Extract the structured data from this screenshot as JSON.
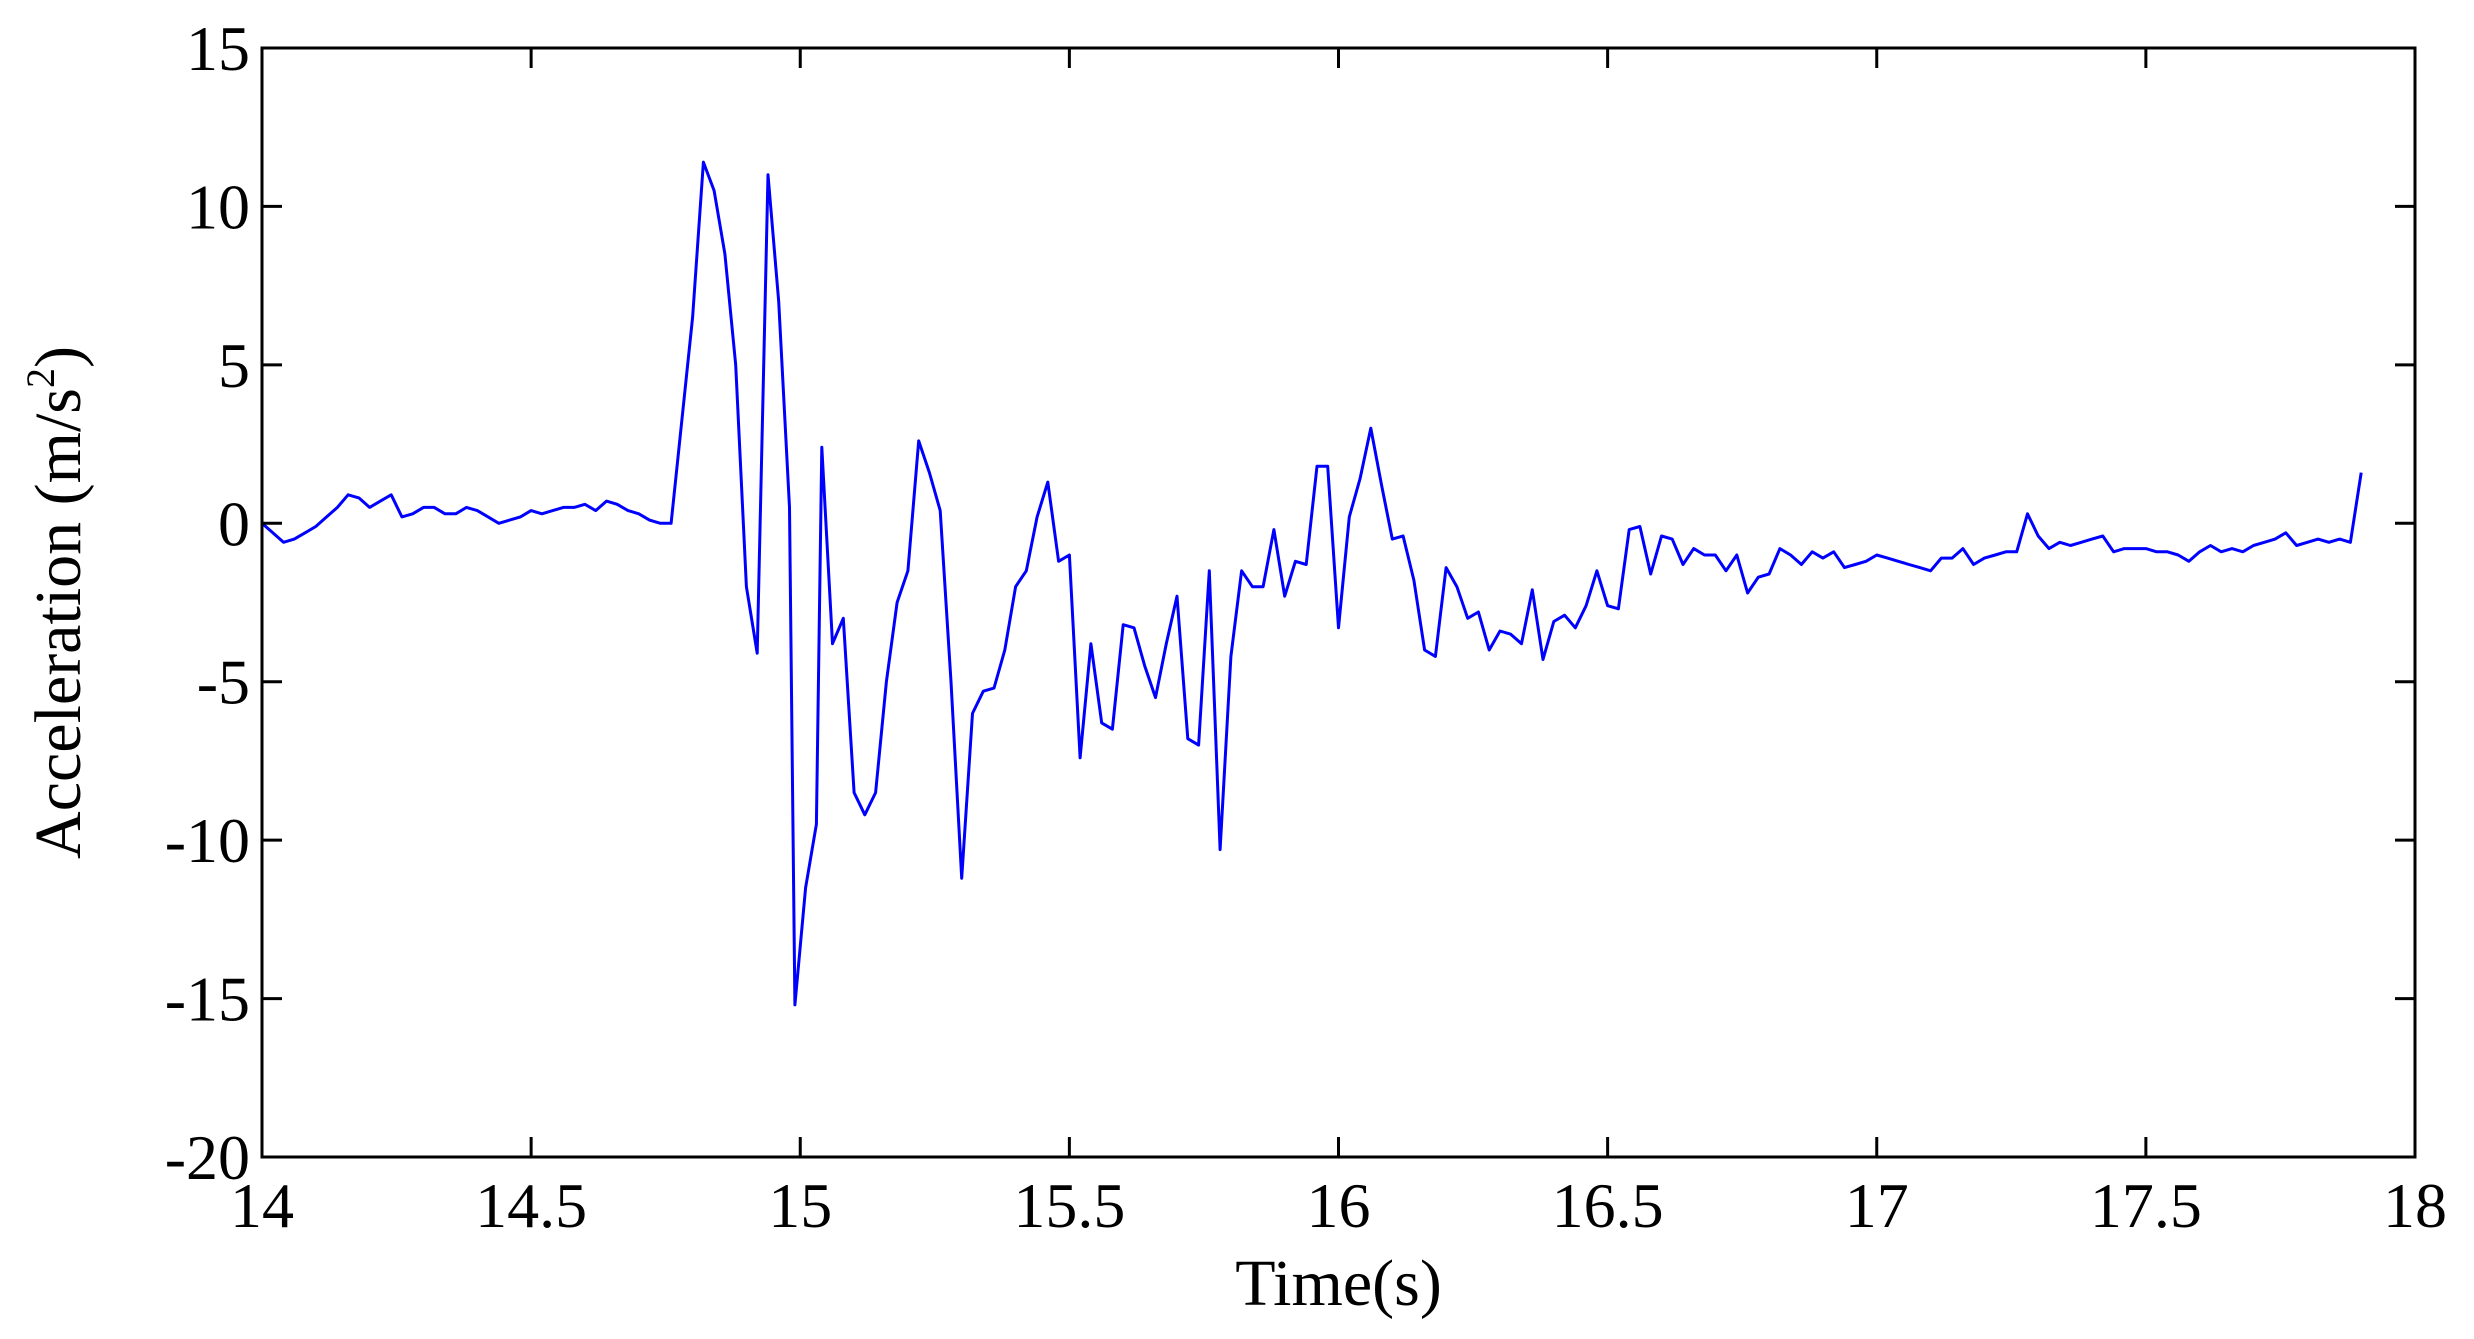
{
  "chart_data": {
    "type": "line",
    "title": "",
    "xlabel": "Time(s)",
    "ylabel_main": "Acceleration  (m/s",
    "ylabel_sup": "2",
    "ylabel_close": ")",
    "xlim": [
      14,
      18
    ],
    "ylim": [
      -20,
      15
    ],
    "xticks": [
      14,
      14.5,
      15,
      15.5,
      16,
      16.5,
      17,
      17.5,
      18
    ],
    "xtick_labels": [
      "14",
      "14.5",
      "15",
      "15.5",
      "16",
      "16.5",
      "17",
      "17.5",
      "18"
    ],
    "yticks": [
      15,
      10,
      5,
      0,
      -5,
      -10,
      -15,
      -20
    ],
    "ytick_labels": [
      "15",
      "10",
      "5",
      "0",
      "-5",
      "-10",
      "-15",
      "-20"
    ],
    "grid": false,
    "series": [
      {
        "color": "#0000ff",
        "points": [
          [
            14.0,
            0.0
          ],
          [
            14.02,
            -0.3
          ],
          [
            14.04,
            -0.6
          ],
          [
            14.06,
            -0.5
          ],
          [
            14.08,
            -0.3
          ],
          [
            14.1,
            -0.1
          ],
          [
            14.12,
            0.2
          ],
          [
            14.14,
            0.5
          ],
          [
            14.16,
            0.9
          ],
          [
            14.18,
            0.8
          ],
          [
            14.2,
            0.5
          ],
          [
            14.22,
            0.7
          ],
          [
            14.24,
            0.9
          ],
          [
            14.26,
            0.2
          ],
          [
            14.28,
            0.3
          ],
          [
            14.3,
            0.5
          ],
          [
            14.32,
            0.5
          ],
          [
            14.34,
            0.3
          ],
          [
            14.36,
            0.3
          ],
          [
            14.38,
            0.5
          ],
          [
            14.4,
            0.4
          ],
          [
            14.42,
            0.2
          ],
          [
            14.44,
            0.0
          ],
          [
            14.46,
            0.1
          ],
          [
            14.48,
            0.2
          ],
          [
            14.5,
            0.4
          ],
          [
            14.52,
            0.3
          ],
          [
            14.54,
            0.4
          ],
          [
            14.56,
            0.5
          ],
          [
            14.58,
            0.5
          ],
          [
            14.6,
            0.6
          ],
          [
            14.62,
            0.4
          ],
          [
            14.64,
            0.7
          ],
          [
            14.66,
            0.6
          ],
          [
            14.68,
            0.4
          ],
          [
            14.7,
            0.3
          ],
          [
            14.72,
            0.1
          ],
          [
            14.74,
            0.0
          ],
          [
            14.76,
            0.0
          ],
          [
            14.8,
            6.5
          ],
          [
            14.82,
            11.4
          ],
          [
            14.84,
            10.5
          ],
          [
            14.86,
            8.5
          ],
          [
            14.88,
            5.0
          ],
          [
            14.9,
            -2.0
          ],
          [
            14.92,
            -4.1
          ],
          [
            14.94,
            11.0
          ],
          [
            14.96,
            7.0
          ],
          [
            14.98,
            0.5
          ],
          [
            14.99,
            -15.2
          ],
          [
            15.01,
            -11.5
          ],
          [
            15.03,
            -9.5
          ],
          [
            15.04,
            2.4
          ],
          [
            15.06,
            -3.8
          ],
          [
            15.08,
            -3.0
          ],
          [
            15.1,
            -8.5
          ],
          [
            15.12,
            -9.2
          ],
          [
            15.14,
            -8.5
          ],
          [
            15.16,
            -5.0
          ],
          [
            15.18,
            -2.5
          ],
          [
            15.2,
            -1.5
          ],
          [
            15.22,
            2.6
          ],
          [
            15.24,
            1.6
          ],
          [
            15.26,
            0.4
          ],
          [
            15.28,
            -5.0
          ],
          [
            15.3,
            -11.2
          ],
          [
            15.32,
            -6.0
          ],
          [
            15.34,
            -5.3
          ],
          [
            15.36,
            -5.2
          ],
          [
            15.38,
            -4.0
          ],
          [
            15.4,
            -2.0
          ],
          [
            15.42,
            -1.5
          ],
          [
            15.44,
            0.2
          ],
          [
            15.46,
            1.3
          ],
          [
            15.48,
            -1.2
          ],
          [
            15.5,
            -1.0
          ],
          [
            15.52,
            -7.4
          ],
          [
            15.54,
            -3.8
          ],
          [
            15.56,
            -6.3
          ],
          [
            15.58,
            -6.5
          ],
          [
            15.6,
            -3.2
          ],
          [
            15.62,
            -3.3
          ],
          [
            15.64,
            -4.5
          ],
          [
            15.66,
            -5.5
          ],
          [
            15.68,
            -3.8
          ],
          [
            15.7,
            -2.3
          ],
          [
            15.72,
            -6.8
          ],
          [
            15.74,
            -7.0
          ],
          [
            15.76,
            -1.5
          ],
          [
            15.78,
            -10.3
          ],
          [
            15.8,
            -4.2
          ],
          [
            15.82,
            -1.5
          ],
          [
            15.84,
            -2.0
          ],
          [
            15.86,
            -2.0
          ],
          [
            15.88,
            -0.2
          ],
          [
            15.9,
            -2.3
          ],
          [
            15.92,
            -1.2
          ],
          [
            15.94,
            -1.3
          ],
          [
            15.96,
            1.8
          ],
          [
            15.98,
            1.8
          ],
          [
            16.0,
            -3.3
          ],
          [
            16.02,
            0.2
          ],
          [
            16.04,
            1.4
          ],
          [
            16.06,
            3.0
          ],
          [
            16.08,
            1.2
          ],
          [
            16.1,
            -0.5
          ],
          [
            16.12,
            -0.4
          ],
          [
            16.14,
            -1.8
          ],
          [
            16.16,
            -4.0
          ],
          [
            16.18,
            -4.2
          ],
          [
            16.2,
            -1.4
          ],
          [
            16.22,
            -2.0
          ],
          [
            16.24,
            -3.0
          ],
          [
            16.26,
            -2.8
          ],
          [
            16.28,
            -4.0
          ],
          [
            16.3,
            -3.4
          ],
          [
            16.32,
            -3.5
          ],
          [
            16.34,
            -3.8
          ],
          [
            16.36,
            -2.1
          ],
          [
            16.38,
            -4.3
          ],
          [
            16.4,
            -3.1
          ],
          [
            16.42,
            -2.9
          ],
          [
            16.44,
            -3.3
          ],
          [
            16.46,
            -2.6
          ],
          [
            16.48,
            -1.5
          ],
          [
            16.5,
            -2.6
          ],
          [
            16.52,
            -2.7
          ],
          [
            16.54,
            -0.2
          ],
          [
            16.56,
            -0.1
          ],
          [
            16.58,
            -1.6
          ],
          [
            16.6,
            -0.4
          ],
          [
            16.62,
            -0.5
          ],
          [
            16.64,
            -1.3
          ],
          [
            16.66,
            -0.8
          ],
          [
            16.68,
            -1.0
          ],
          [
            16.7,
            -1.0
          ],
          [
            16.72,
            -1.5
          ],
          [
            16.74,
            -1.0
          ],
          [
            16.76,
            -2.2
          ],
          [
            16.78,
            -1.7
          ],
          [
            16.8,
            -1.6
          ],
          [
            16.82,
            -0.8
          ],
          [
            16.84,
            -1.0
          ],
          [
            16.86,
            -1.3
          ],
          [
            16.88,
            -0.9
          ],
          [
            16.9,
            -1.1
          ],
          [
            16.92,
            -0.9
          ],
          [
            16.94,
            -1.4
          ],
          [
            16.96,
            -1.3
          ],
          [
            16.98,
            -1.2
          ],
          [
            17.0,
            -1.0
          ],
          [
            17.02,
            -1.1
          ],
          [
            17.04,
            -1.2
          ],
          [
            17.06,
            -1.3
          ],
          [
            17.08,
            -1.4
          ],
          [
            17.1,
            -1.5
          ],
          [
            17.12,
            -1.1
          ],
          [
            17.14,
            -1.1
          ],
          [
            17.16,
            -0.8
          ],
          [
            17.18,
            -1.3
          ],
          [
            17.2,
            -1.1
          ],
          [
            17.22,
            -1.0
          ],
          [
            17.24,
            -0.9
          ],
          [
            17.26,
            -0.9
          ],
          [
            17.28,
            0.3
          ],
          [
            17.3,
            -0.4
          ],
          [
            17.32,
            -0.8
          ],
          [
            17.34,
            -0.6
          ],
          [
            17.36,
            -0.7
          ],
          [
            17.38,
            -0.6
          ],
          [
            17.4,
            -0.5
          ],
          [
            17.42,
            -0.4
          ],
          [
            17.44,
            -0.9
          ],
          [
            17.46,
            -0.8
          ],
          [
            17.48,
            -0.8
          ],
          [
            17.5,
            -0.8
          ],
          [
            17.52,
            -0.9
          ],
          [
            17.54,
            -0.9
          ],
          [
            17.56,
            -1.0
          ],
          [
            17.58,
            -1.2
          ],
          [
            17.6,
            -0.9
          ],
          [
            17.62,
            -0.7
          ],
          [
            17.64,
            -0.9
          ],
          [
            17.66,
            -0.8
          ],
          [
            17.68,
            -0.9
          ],
          [
            17.7,
            -0.7
          ],
          [
            17.72,
            -0.6
          ],
          [
            17.74,
            -0.5
          ],
          [
            17.76,
            -0.3
          ],
          [
            17.78,
            -0.7
          ],
          [
            17.8,
            -0.6
          ],
          [
            17.82,
            -0.5
          ],
          [
            17.84,
            -0.6
          ],
          [
            17.86,
            -0.5
          ],
          [
            17.88,
            -0.6
          ],
          [
            17.9,
            1.6
          ]
        ]
      }
    ]
  }
}
